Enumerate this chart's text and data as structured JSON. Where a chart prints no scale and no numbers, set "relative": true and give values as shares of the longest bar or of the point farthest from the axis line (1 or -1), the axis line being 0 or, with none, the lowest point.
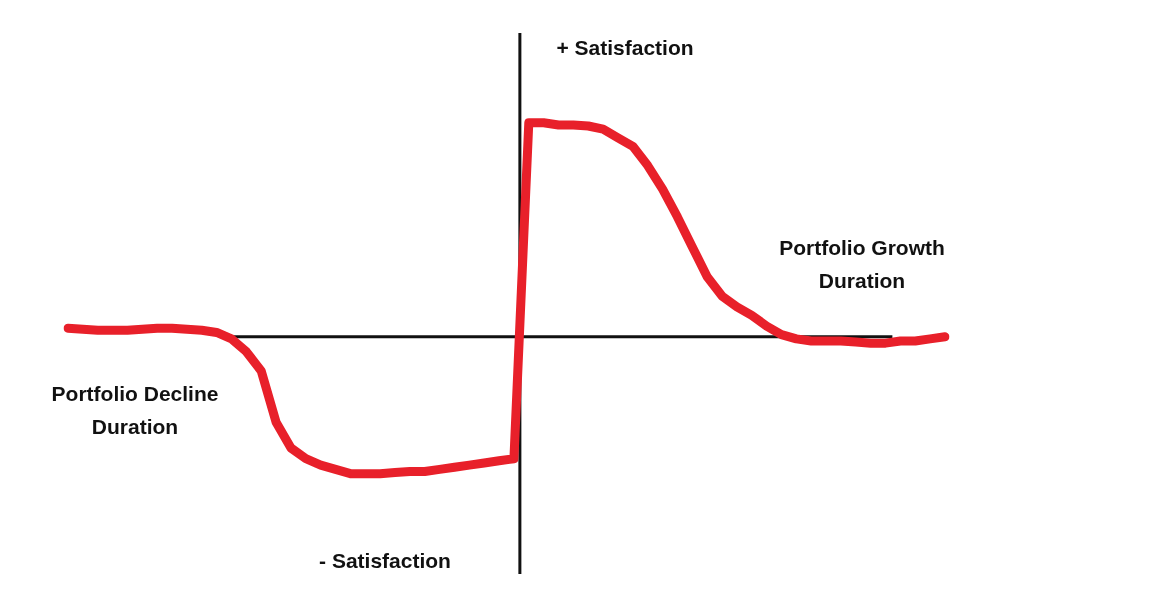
{
  "chart_data": {
    "type": "line",
    "relative": true,
    "legend": false,
    "marker": "none",
    "line_style": "solid",
    "ref_lines": [
      {
        "axis": "y",
        "value": 0,
        "color": "#111111"
      }
    ],
    "annotations": [
      "+ Satisfaction",
      "- Satisfaction",
      "Portfolio Growth Duration",
      "Portfolio Decline Duration"
    ],
    "categories": [
      null,
      null,
      null,
      null,
      null,
      null,
      null,
      null,
      null,
      null,
      null,
      null,
      null,
      null,
      null,
      null,
      null,
      null,
      null,
      null,
      null,
      null,
      null,
      null,
      null,
      null,
      null,
      null,
      null,
      null,
      null,
      null,
      null,
      null,
      null,
      null,
      null,
      null,
      null,
      null,
      null,
      null,
      null,
      null,
      null,
      null,
      null,
      null,
      null,
      null,
      null,
      null,
      null,
      null,
      null,
      null,
      null,
      null,
      null,
      null
    ],
    "series": [
      {
        "color": "#e8202a",
        "values": [
          0.04,
          0.035,
          0.03,
          0.03,
          0.03,
          0.035,
          0.04,
          0.04,
          0.035,
          0.03,
          0.02,
          -0.01,
          -0.07,
          -0.16,
          -0.4,
          -0.52,
          -0.57,
          -0.6,
          -0.62,
          -0.64,
          -0.64,
          -0.64,
          -0.635,
          -0.63,
          -0.63,
          -0.62,
          -0.61,
          -0.6,
          -0.59,
          -0.58,
          -0.57,
          1,
          1,
          0.99,
          0.99,
          0.985,
          0.97,
          0.93,
          0.89,
          0.8,
          0.69,
          0.56,
          0.42,
          0.28,
          0.19,
          0.14,
          0.1,
          0.05,
          0.01,
          -0.01,
          -0.02,
          -0.02,
          -0.02,
          -0.025,
          -0.03,
          -0.03,
          -0.02,
          -0.02,
          -0.01,
          0
        ]
      }
    ]
  }
}
